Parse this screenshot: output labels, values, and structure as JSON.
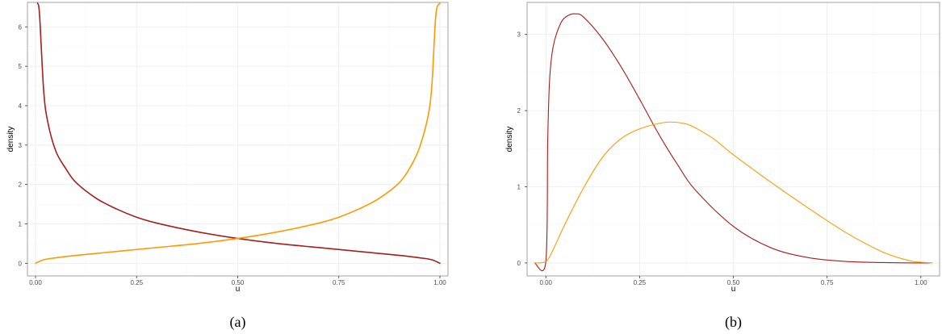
{
  "chart_data": [
    {
      "type": "line",
      "caption": "(a)",
      "xlabel": "u",
      "ylabel": "density",
      "xlim": [
        -0.02,
        1.02
      ],
      "ylim": [
        -0.32,
        6.62
      ],
      "xticks": [
        0,
        0.25,
        0.5,
        0.75,
        1
      ],
      "xtick_labels": [
        "0.00",
        "0.25",
        "0.50",
        "0.75",
        "1.00"
      ],
      "yticks": [
        0,
        1,
        2,
        3,
        4,
        5,
        6
      ],
      "ytick_labels": [
        "0",
        "1",
        "2",
        "3",
        "4",
        "5",
        "6"
      ],
      "grid": true,
      "legend": "none",
      "series": [
        {
          "color": "#a51e1e",
          "x": [
            0.005,
            0.01,
            0.02,
            0.03,
            0.05,
            0.075,
            0.1,
            0.15,
            0.2,
            0.25,
            0.3,
            0.4,
            0.5,
            0.6,
            0.7,
            0.8,
            0.9,
            0.95,
            0.98,
            1.0
          ],
          "y": [
            6.6,
            6.3,
            4.4,
            3.6,
            2.85,
            2.4,
            2.05,
            1.65,
            1.38,
            1.17,
            1.02,
            0.8,
            0.63,
            0.5,
            0.4,
            0.3,
            0.2,
            0.14,
            0.09,
            0.0
          ]
        },
        {
          "color": "#ff9900",
          "x": [
            0.0,
            0.02,
            0.05,
            0.1,
            0.2,
            0.3,
            0.4,
            0.5,
            0.6,
            0.7,
            0.75,
            0.8,
            0.85,
            0.9,
            0.93,
            0.95,
            0.97,
            0.98,
            0.99,
            1.0
          ],
          "y": [
            0.0,
            0.09,
            0.14,
            0.2,
            0.3,
            0.4,
            0.5,
            0.63,
            0.8,
            1.02,
            1.17,
            1.38,
            1.65,
            2.05,
            2.5,
            2.95,
            3.7,
            4.5,
            6.3,
            6.6
          ]
        }
      ]
    },
    {
      "type": "line",
      "caption": "(b)",
      "xlabel": "u",
      "ylabel": "density",
      "xlim": [
        -0.05,
        1.05
      ],
      "ylim": [
        -0.17,
        3.42
      ],
      "xticks": [
        0,
        0.25,
        0.5,
        0.75,
        1
      ],
      "xtick_labels": [
        "0.00",
        "0.25",
        "0.50",
        "0.75",
        "1.00"
      ],
      "yticks": [
        0,
        1,
        2,
        3
      ],
      "ytick_labels": [
        "0",
        "1",
        "2",
        "3"
      ],
      "grid": true,
      "legend": "none",
      "series": [
        {
          "color": "#a51e1e",
          "x": [
            -0.03,
            0.0,
            0.005,
            0.01,
            0.02,
            0.04,
            0.06,
            0.08,
            0.1,
            0.15,
            0.2,
            0.25,
            0.3,
            0.35,
            0.4,
            0.5,
            0.6,
            0.7,
            0.8,
            0.9,
            1.0,
            1.03
          ],
          "y": [
            0.0,
            0.02,
            1.6,
            2.4,
            2.85,
            3.15,
            3.25,
            3.27,
            3.23,
            2.95,
            2.58,
            2.15,
            1.7,
            1.3,
            0.95,
            0.48,
            0.2,
            0.07,
            0.02,
            0.005,
            0.0,
            0.0
          ]
        },
        {
          "color": "#ff9900",
          "x": [
            -0.03,
            0.0,
            0.02,
            0.05,
            0.1,
            0.15,
            0.2,
            0.25,
            0.3,
            0.33,
            0.37,
            0.4,
            0.45,
            0.5,
            0.6,
            0.7,
            0.8,
            0.9,
            0.97,
            1.0,
            1.03
          ],
          "y": [
            0.0,
            0.02,
            0.18,
            0.5,
            0.98,
            1.38,
            1.63,
            1.76,
            1.83,
            1.85,
            1.83,
            1.77,
            1.62,
            1.42,
            1.06,
            0.72,
            0.4,
            0.14,
            0.03,
            0.01,
            0.0
          ]
        }
      ]
    }
  ]
}
